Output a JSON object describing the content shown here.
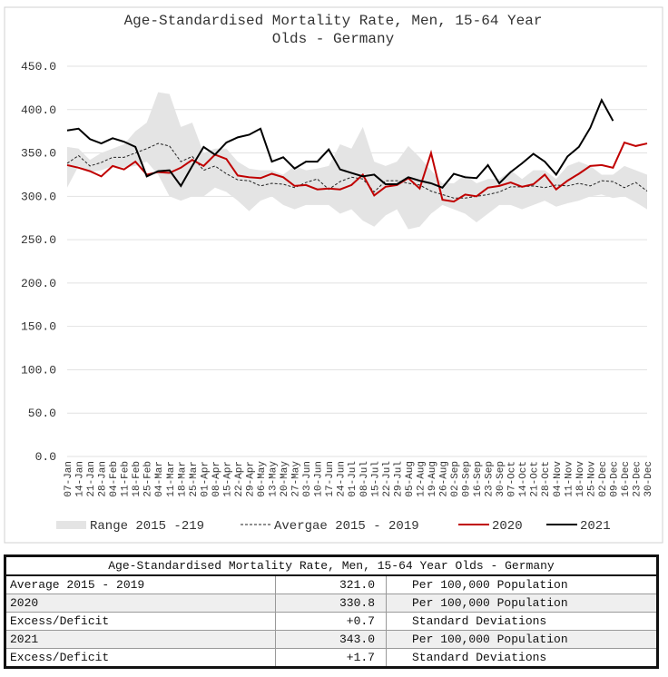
{
  "chart_data": {
    "type": "line",
    "title": [
      "Age-Standardised Mortality Rate, Men, 15-64 Year",
      "Olds - Germany"
    ],
    "categories": [
      "07-Jan",
      "14-Jan",
      "21-Jan",
      "28-Jan",
      "04-Feb",
      "11-Feb",
      "18-Feb",
      "25-Feb",
      "04-Mar",
      "11-Mar",
      "18-Mar",
      "25-Mar",
      "01-Apr",
      "08-Apr",
      "15-Apr",
      "22-Apr",
      "29-Apr",
      "06-May",
      "13-May",
      "20-May",
      "27-May",
      "03-Jun",
      "10-Jun",
      "17-Jun",
      "24-Jun",
      "01-Jul",
      "08-Jul",
      "15-Jul",
      "22-Jul",
      "29-Jul",
      "05-Aug",
      "12-Aug",
      "19-Aug",
      "26-Aug",
      "02-Sep",
      "09-Sep",
      "16-Sep",
      "23-Sep",
      "30-Sep",
      "07-Oct",
      "14-Oct",
      "21-Oct",
      "28-Oct",
      "04-Nov",
      "11-Nov",
      "18-Nov",
      "25-Nov",
      "02-Dec",
      "09-Dec",
      "16-Dec",
      "23-Dec",
      "30-Dec"
    ],
    "ylim": [
      0,
      450
    ],
    "yticks": [
      {
        "value": 0,
        "label": "0.0"
      },
      {
        "value": 50,
        "label": "50.0"
      },
      {
        "value": 100,
        "label": "100.0"
      },
      {
        "value": 150,
        "label": "150.0"
      },
      {
        "value": 200,
        "label": "200.0"
      },
      {
        "value": 250,
        "label": "250.0"
      },
      {
        "value": 300,
        "label": "300.0"
      },
      {
        "value": 350,
        "label": "350.0"
      },
      {
        "value": 400,
        "label": "400.0"
      },
      {
        "value": 450,
        "label": "450.0"
      }
    ],
    "grid": true,
    "legend": "bottom",
    "series": [
      {
        "name": "Range 2015 -219",
        "color": "#e4e4e4",
        "lower": [
          310,
          335,
          328,
          330,
          335,
          333,
          335,
          340,
          325,
          300,
          295,
          300,
          300,
          310,
          305,
          295,
          283,
          295,
          300,
          290,
          285,
          290,
          290,
          290,
          280,
          285,
          272,
          265,
          278,
          285,
          262,
          265,
          280,
          290,
          285,
          280,
          270,
          280,
          290,
          290,
          285,
          290,
          295,
          288,
          292,
          295,
          300,
          302,
          298,
          300,
          293,
          285
        ],
        "upper": [
          357,
          355,
          342,
          350,
          355,
          360,
          375,
          385,
          420,
          418,
          380,
          385,
          350,
          355,
          355,
          340,
          332,
          330,
          330,
          325,
          335,
          330,
          332,
          335,
          360,
          355,
          380,
          340,
          335,
          340,
          358,
          345,
          330,
          315,
          315,
          325,
          315,
          320,
          320,
          330,
          320,
          330,
          330,
          320,
          335,
          340,
          335,
          325,
          325,
          335,
          330,
          325
        ]
      },
      {
        "name": "Avergae 2015 - 2019",
        "color": "#222222",
        "dash": true,
        "values": [
          338,
          347,
          335,
          339,
          345,
          345,
          350,
          355,
          361,
          358,
          340,
          346,
          330,
          335,
          326,
          319,
          318,
          312,
          315,
          314,
          310,
          316,
          320,
          308,
          317,
          322,
          320,
          305,
          318,
          318,
          315,
          313,
          306,
          302,
          298,
          298,
          300,
          302,
          305,
          311,
          311,
          312,
          310,
          313,
          312,
          315,
          312,
          318,
          317,
          310,
          316,
          306
        ]
      },
      {
        "name": "2020",
        "color": "#c00000",
        "values": [
          336,
          333,
          329,
          323,
          335,
          331,
          340,
          325,
          328,
          327,
          333,
          342,
          335,
          348,
          343,
          324,
          322,
          321,
          326,
          322,
          312,
          313,
          308,
          309,
          308,
          313,
          325,
          301,
          311,
          313,
          321,
          309,
          350,
          296,
          294,
          302,
          300,
          310,
          312,
          316,
          311,
          314,
          325,
          308,
          318,
          326,
          335,
          336,
          333,
          362,
          358,
          361
        ]
      },
      {
        "name": "2021",
        "color": "#000000",
        "values": [
          376,
          378,
          366,
          361,
          367,
          363,
          357,
          323,
          329,
          330,
          312,
          335,
          357,
          348,
          362,
          368,
          371,
          378,
          340,
          345,
          332,
          340,
          340,
          354,
          331,
          327,
          323,
          325,
          314,
          314,
          322,
          318,
          315,
          310,
          326,
          322,
          321,
          336,
          315,
          328,
          338,
          349,
          340,
          325,
          346,
          357,
          379,
          411,
          387,
          null,
          null,
          null
        ]
      }
    ]
  },
  "table": {
    "title": "Age-Standardised Mortality Rate, Men, 15-64 Year Olds - Germany",
    "rows": [
      [
        "Average 2015 - 2019",
        "321.0",
        "Per 100,000 Population"
      ],
      [
        "2020",
        "330.8",
        "Per 100,000 Population"
      ],
      [
        "Excess/Deficit",
        "+0.7",
        "Standard Deviations"
      ],
      [
        "2021",
        "343.0",
        "Per 100,000 Population"
      ],
      [
        "Excess/Deficit",
        "+1.7",
        "Standard Deviations"
      ]
    ]
  }
}
